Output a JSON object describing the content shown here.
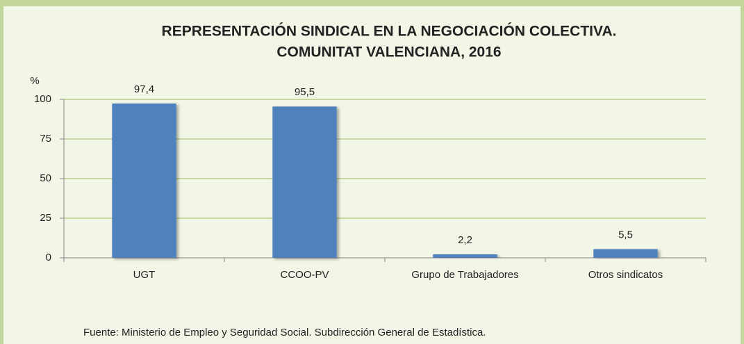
{
  "chart_data": {
    "type": "bar",
    "title": [
      "REPRESENTACIÓN SINDICAL EN LA NEGOCIACIÓN COLECTIVA.",
      "COMUNITAT VALENCIANA, 2016"
    ],
    "y_label": "%",
    "categories": [
      "UGT",
      "CCOO-PV",
      "Grupo de Trabajadores",
      "Otros sindicatos"
    ],
    "values": [
      97.4,
      95.5,
      2.2,
      5.5
    ],
    "value_labels": [
      "97,4",
      "95,5",
      "2,2",
      "5,5"
    ],
    "color": "#4f81bd",
    "ylim": [
      0,
      100
    ],
    "yticks": [
      0,
      25,
      50,
      75,
      100
    ],
    "grid": true,
    "source": "Fuente: Ministerio de Empleo y Seguridad Social. Subdirección General de Estadística."
  }
}
